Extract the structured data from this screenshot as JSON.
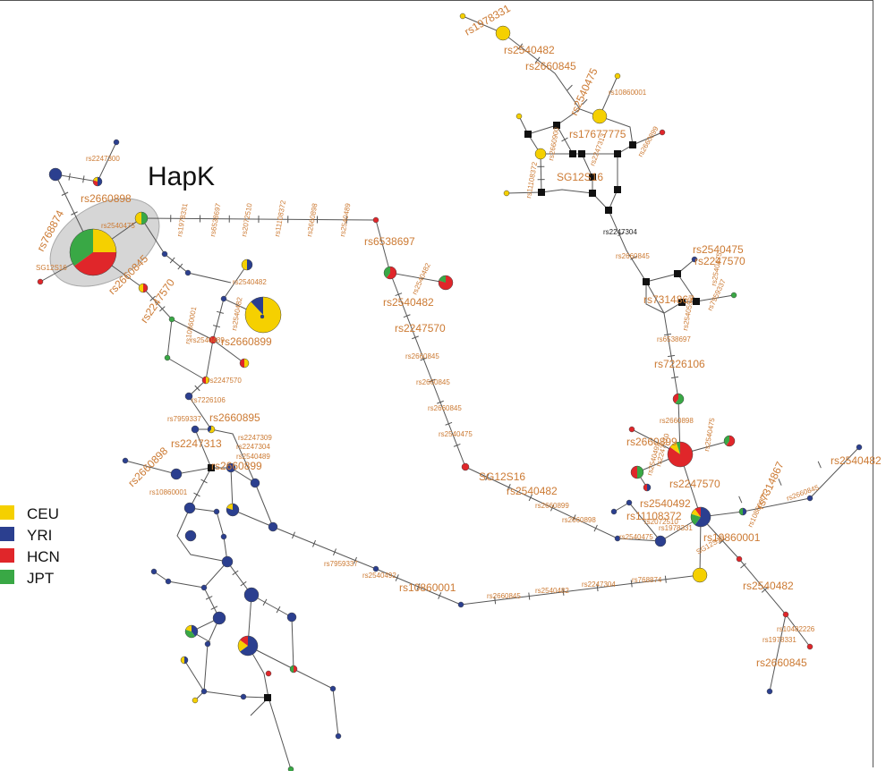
{
  "diagram": {
    "title": "HapK",
    "legend": [
      {
        "label": "CEU",
        "color": "#f5d000"
      },
      {
        "label": "YRI",
        "color": "#2b3f8f"
      },
      {
        "label": "HCN",
        "color": "#e0262a"
      },
      {
        "label": "JPT",
        "color": "#39a845"
      }
    ],
    "colors": {
      "CEU": "#f5d000",
      "YRI": "#2b3f8f",
      "HCN": "#e0262a",
      "JPT": "#39a845",
      "median": "#111111",
      "label": "#cc7a33",
      "hapk_region": "#d0d0d0"
    },
    "mutation_labels": {
      "l1": "rs1978331",
      "l2": "rs2540482",
      "l3": "rs2660845",
      "l4": "rs2540475",
      "l5": "rs10860001",
      "l6": "rs17677775",
      "l7": "rs2660899",
      "l8": "rs2247313",
      "l9": "SG12S16",
      "l10": "rs11108372",
      "l11": "rs2660900",
      "l12": "rs2247304",
      "l13": "rs2660845",
      "l14": "rs2540475",
      "l15": "rs2247570",
      "l16": "rs7314867",
      "l17": "rs2540559",
      "l18": "rs7959337",
      "l19": "rs6538697",
      "l20": "rs7226106",
      "l21": "rs2660898",
      "l22": "rs2660899",
      "l23": "rs2540475",
      "l24": "rs2247570",
      "l25": "rs7314867",
      "l26": "rs10860001",
      "l27": "rs2660845",
      "l28": "rs2540482",
      "l29": "rs2540492",
      "l30": "rs11108372",
      "l31": "rs10860001",
      "l32": "rs1978331",
      "l33": "rs2540475",
      "l34": "rs2072510",
      "l35": "SG12S16",
      "l36": "rs2540482",
      "l37": "rs10482226",
      "l38": "rs1978331",
      "l39": "rs2660845",
      "l40": "rs2540492",
      "l41": "rs2247570",
      "l42": "rs2540475",
      "l43": "rs6538697",
      "l44": "rs2540482",
      "l45": "rs2540482",
      "l46": "rs2247570",
      "l47": "rs2660845",
      "l48": "rs2660845",
      "l49": "rs2660845",
      "l50": "rs2540475",
      "l51": "SG12S16",
      "l52": "rs2540482",
      "l53": "rs2660899",
      "l54": "rs2660898",
      "l55": "rs10860001",
      "l56": "rs2660845",
      "l57": "rs2540482",
      "l58": "rs2247304",
      "l59": "rs768874",
      "l60": "rs2540492",
      "l61": "rs7959337",
      "l62": "rs1978331",
      "l63": "rs6538697",
      "l64": "rs2072510",
      "l65": "rs11108372",
      "l66": "rs2660898",
      "l67": "rs2540489",
      "l68": "rs2247300",
      "l69": "rs2660898",
      "l70": "rs768874",
      "l71": "rs2540475",
      "l72": "SG12S16",
      "l73": "rs2660845",
      "l74": "rs2247570",
      "l75": "rs2540482",
      "l76": "rs10860001",
      "l77": "rs2540482",
      "l78": "rs2660899",
      "l79": "rs2540489",
      "l80": "rs2247570",
      "l81": "rs7226106",
      "l82": "rs7959337",
      "l83": "rs2660895",
      "l84": "rs2247313",
      "l85": "rs2247309",
      "l86": "rs2247304",
      "l87": "rs2540489",
      "l88": "rs2660899",
      "l89": "rs2660898",
      "l90": "rs10860001"
    }
  }
}
